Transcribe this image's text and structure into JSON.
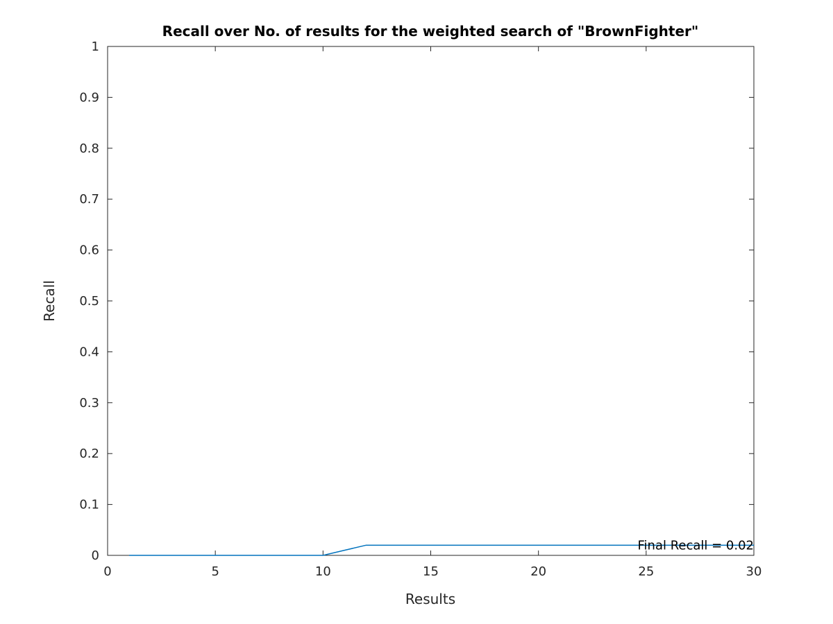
{
  "chart_data": {
    "type": "line",
    "title": "Recall over No. of results for the weighted search of \"BrownFighter\"",
    "xlabel": "Results",
    "ylabel": "Recall",
    "xlim": [
      0,
      30
    ],
    "ylim": [
      0,
      1
    ],
    "xticks": [
      "0",
      "5",
      "10",
      "15",
      "20",
      "25",
      "30"
    ],
    "yticks": [
      "0",
      "0.1",
      "0.2",
      "0.3",
      "0.4",
      "0.5",
      "0.6",
      "0.7",
      "0.8",
      "0.9",
      "1"
    ],
    "grid": false,
    "series": [
      {
        "color": "#0072BD",
        "x": [
          1,
          2,
          3,
          4,
          5,
          6,
          7,
          8,
          9,
          10,
          11,
          12,
          13,
          14,
          15,
          16,
          17,
          18,
          19,
          20,
          21,
          22,
          23,
          24,
          25,
          26,
          27,
          28,
          29,
          30
        ],
        "y": [
          0,
          0,
          0,
          0,
          0,
          0,
          0,
          0,
          0,
          0,
          0.01,
          0.02,
          0.02,
          0.02,
          0.02,
          0.02,
          0.02,
          0.02,
          0.02,
          0.02,
          0.02,
          0.02,
          0.02,
          0.02,
          0.02,
          0.02,
          0.02,
          0.02,
          0.02,
          0.02
        ]
      }
    ],
    "annotations": [
      {
        "text": "Final Recall = 0.02",
        "x": 30,
        "y": 0.02
      }
    ]
  }
}
